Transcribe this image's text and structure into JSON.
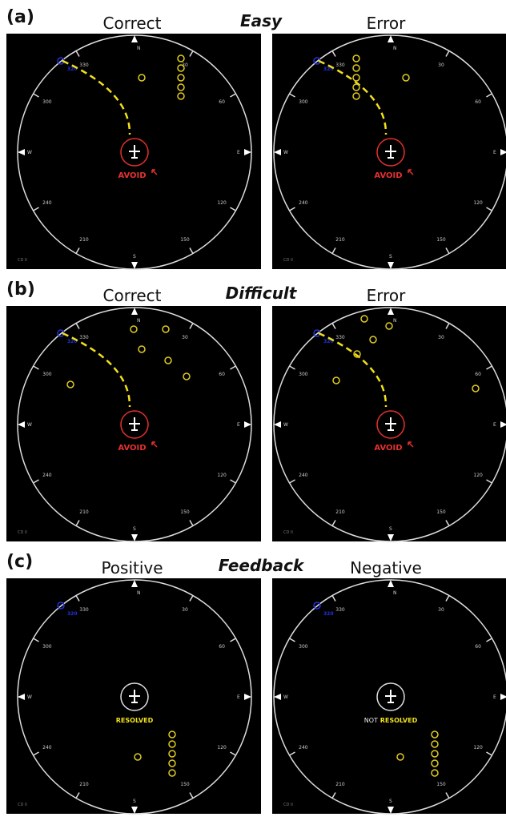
{
  "rows": [
    {
      "label": "(a)",
      "title": "Easy",
      "panels": [
        {
          "caption": "Correct"
        },
        {
          "caption": "Error"
        }
      ]
    },
    {
      "label": "(b)",
      "title": "Difficult",
      "panels": [
        {
          "caption": "Correct"
        },
        {
          "caption": "Error"
        }
      ]
    },
    {
      "label": "(c)",
      "title": "Feedback",
      "panels": [
        {
          "caption": "Positive"
        },
        {
          "caption": "Negative"
        }
      ]
    }
  ],
  "radar": {
    "north": "N",
    "east": "E",
    "south": "S",
    "west": "W",
    "bearings": [
      "30",
      "60",
      "120",
      "150",
      "210",
      "240",
      "300",
      "330"
    ],
    "corner": "CD II",
    "callsign": "320"
  },
  "alerts": {
    "avoid": "AVOID",
    "resolved": "RESOLVED",
    "not": "NOT"
  }
}
